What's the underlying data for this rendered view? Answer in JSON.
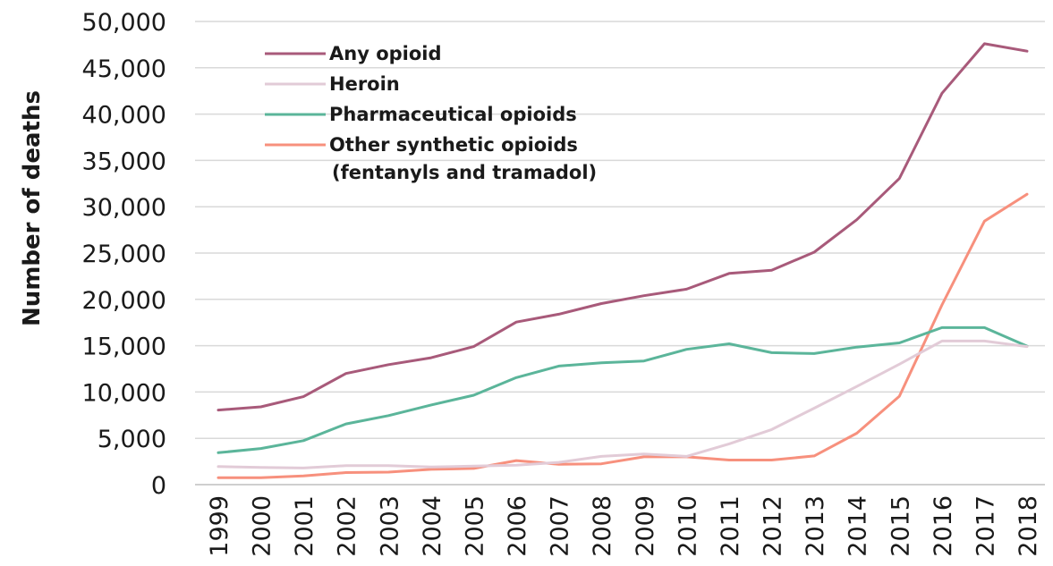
{
  "chart_data": {
    "type": "line",
    "title": "",
    "xlabel": "",
    "ylabel": "Number of deaths",
    "ylim": [
      0,
      50000
    ],
    "y_ticks": [
      "0",
      "5,000",
      "10,000",
      "15,000",
      "20,000",
      "25,000",
      "30,000",
      "35,000",
      "40,000",
      "45,000",
      "50,000"
    ],
    "grid": "horizontal",
    "legend_position": "top-left",
    "categories": [
      "1999",
      "2000",
      "2001",
      "2002",
      "2003",
      "2004",
      "2005",
      "2006",
      "2007",
      "2008",
      "2009",
      "2010",
      "2011",
      "2012",
      "2013",
      "2014",
      "2015",
      "2016",
      "2017",
      "2018"
    ],
    "series": [
      {
        "name": "Any opioid",
        "legend_lines": [
          "Any opioid"
        ],
        "color": "#a85a7a",
        "values": [
          8050,
          8400,
          9500,
          12000,
          12950,
          13700,
          14900,
          17550,
          18400,
          19550,
          20400,
          21100,
          22800,
          23150,
          25100,
          28600,
          33050,
          42250,
          47600,
          46800
        ]
      },
      {
        "name": "Heroin",
        "legend_lines": [
          "Heroin"
        ],
        "color": "#e2cbd7",
        "values": [
          1950,
          1850,
          1800,
          2050,
          2050,
          1900,
          2000,
          2100,
          2400,
          3050,
          3300,
          3050,
          4400,
          5950,
          8250,
          10600,
          13000,
          15500,
          15500,
          14900
        ]
      },
      {
        "name": "Pharmaceutical opioids",
        "legend_lines": [
          "Pharmaceutical opioids"
        ],
        "color": "#5bb59a",
        "values": [
          3450,
          3900,
          4750,
          6550,
          7450,
          8600,
          9650,
          11550,
          12800,
          13150,
          13350,
          14600,
          15200,
          14250,
          14150,
          14850,
          15300,
          16950,
          16950,
          14950
        ]
      },
      {
        "name": "Other synthetic opioids (fentanyls and tramadol)",
        "legend_lines": [
          "Other synthetic opioids",
          "(fentanyls and tramadol)"
        ],
        "color": "#f7907d",
        "values": [
          750,
          750,
          950,
          1300,
          1350,
          1650,
          1750,
          2600,
          2200,
          2250,
          3000,
          3000,
          2650,
          2650,
          3100,
          5550,
          9550,
          19400,
          28450,
          31350
        ]
      }
    ]
  }
}
